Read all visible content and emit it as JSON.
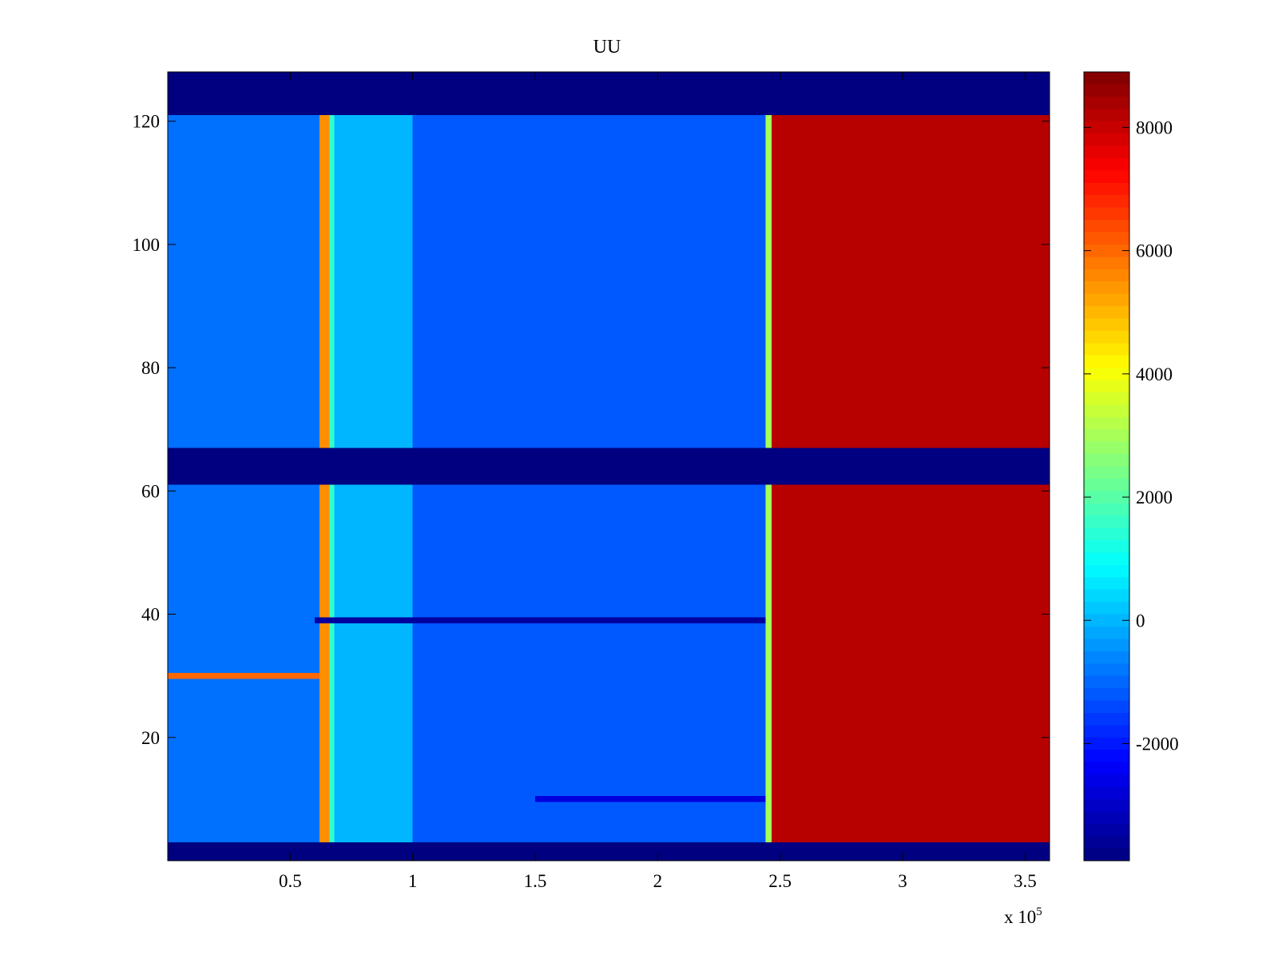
{
  "chart_data": {
    "type": "heatmap",
    "title": "UU",
    "xlabel": "",
    "ylabel": "",
    "x_exponent_label": "x 10",
    "x_exponent_power": "5",
    "xlim": [
      0,
      360000
    ],
    "ylim": [
      0,
      128
    ],
    "xticks": [
      {
        "value": 50000,
        "label": "0.5"
      },
      {
        "value": 100000,
        "label": "1"
      },
      {
        "value": 150000,
        "label": "1.5"
      },
      {
        "value": 200000,
        "label": "2"
      },
      {
        "value": 250000,
        "label": "2.5"
      },
      {
        "value": 300000,
        "label": "3"
      },
      {
        "value": 350000,
        "label": "3.5"
      }
    ],
    "yticks": [
      {
        "value": 20,
        "label": "20"
      },
      {
        "value": 40,
        "label": "40"
      },
      {
        "value": 60,
        "label": "60"
      },
      {
        "value": 80,
        "label": "80"
      },
      {
        "value": 100,
        "label": "100"
      },
      {
        "value": 120,
        "label": "120"
      }
    ],
    "colormap": "jet",
    "clim": [
      -3900,
      8900
    ],
    "colorbar_ticks": [
      {
        "value": -2000,
        "label": "-2000"
      },
      {
        "value": 0,
        "label": "0"
      },
      {
        "value": 2000,
        "label": "2000"
      },
      {
        "value": 4000,
        "label": "4000"
      },
      {
        "value": 6000,
        "label": "6000"
      },
      {
        "value": 8000,
        "label": "8000"
      }
    ],
    "masked_rows": [
      {
        "from": 0,
        "to": 3,
        "value": -3900
      },
      {
        "from": 61,
        "to": 67,
        "value": -3900
      },
      {
        "from": 121,
        "to": 128,
        "value": -3900
      }
    ],
    "regions": [
      {
        "x_from": 0,
        "x_to": 62000,
        "value": -900
      },
      {
        "x_from": 62000,
        "x_to": 66000,
        "value": 5500
      },
      {
        "x_from": 66000,
        "x_to": 68000,
        "value": 1500
      },
      {
        "x_from": 68000,
        "x_to": 100000,
        "value": 0
      },
      {
        "x_from": 100000,
        "x_to": 244000,
        "value": -1200
      },
      {
        "x_from": 244000,
        "x_to": 246500,
        "value": 3000
      },
      {
        "x_from": 246500,
        "x_to": 360000,
        "value": 8200
      }
    ],
    "features": [
      {
        "name": "row-30-stripe",
        "y": 30,
        "x_from": 0,
        "x_to": 62000,
        "value": 6000
      },
      {
        "name": "row-39-low-band",
        "y": 39,
        "x_from": 60000,
        "x_to": 244000,
        "value": -3500
      },
      {
        "name": "row-10-low-band",
        "y": 10,
        "x_from": 150000,
        "x_to": 244000,
        "value": -2700
      }
    ]
  }
}
